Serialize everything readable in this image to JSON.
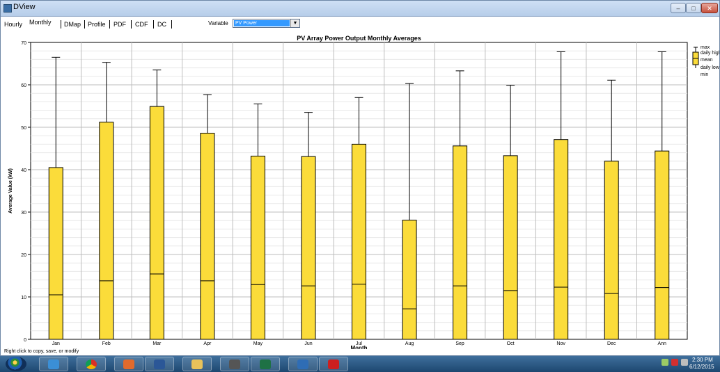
{
  "window": {
    "title": "DView"
  },
  "tabs": [
    {
      "label": "Hourly",
      "active": false
    },
    {
      "label": "Monthly",
      "active": true
    },
    {
      "label": "DMap",
      "active": false
    },
    {
      "label": "Profile",
      "active": false
    },
    {
      "label": "PDF",
      "active": false
    },
    {
      "label": "CDF",
      "active": false
    },
    {
      "label": "DC",
      "active": false
    }
  ],
  "variable": {
    "label": "Variable",
    "value": "PV Power"
  },
  "chart_data": {
    "type": "box",
    "title": "PV Array Power Output Monthly Averages",
    "xlabel": "Month",
    "ylabel": "Average Value (kW)",
    "ylim": [
      0,
      70
    ],
    "yticks": [
      0,
      10,
      20,
      30,
      40,
      50,
      60,
      70
    ],
    "grid": true,
    "legend_position": "right",
    "categories": [
      "Jan",
      "Feb",
      "Mar",
      "Apr",
      "May",
      "Jun",
      "Jul",
      "Aug",
      "Sep",
      "Oct",
      "Nov",
      "Dec",
      "Ann"
    ],
    "max": [
      66.5,
      65.3,
      63.5,
      57.7,
      55.5,
      53.5,
      57.0,
      60.3,
      63.3,
      59.9,
      67.8,
      61.1,
      67.8
    ],
    "high": [
      40.5,
      51.2,
      54.9,
      48.6,
      43.2,
      43.1,
      46.0,
      28.1,
      45.6,
      43.3,
      47.1,
      42.0,
      44.4
    ],
    "mean": [
      10.5,
      13.8,
      15.4,
      13.8,
      12.9,
      12.6,
      13.0,
      7.2,
      12.6,
      11.5,
      12.3,
      10.8,
      12.2
    ],
    "low": [
      0,
      0,
      0,
      0,
      0,
      0,
      0,
      0,
      0,
      0,
      0,
      0,
      0
    ],
    "min": [
      0,
      0,
      0,
      0,
      0,
      0,
      0,
      0,
      0,
      0,
      0,
      0,
      0
    ],
    "legend": [
      "max",
      "daily high",
      "mean",
      "daily low",
      "min"
    ],
    "colors": {
      "box": "#fbdc3a",
      "outline": "#000000",
      "grid": "#c8c8c8"
    }
  },
  "status_text": "Right click to copy, save, or modify",
  "taskbar": {
    "apps": [
      "windows-explorer",
      "internet-explorer",
      "chrome",
      "outlook",
      "word",
      "file-explorer",
      "calculator",
      "excel",
      "matlab",
      "acrobat"
    ],
    "time": "2:30 PM",
    "date": "6/12/2015"
  }
}
